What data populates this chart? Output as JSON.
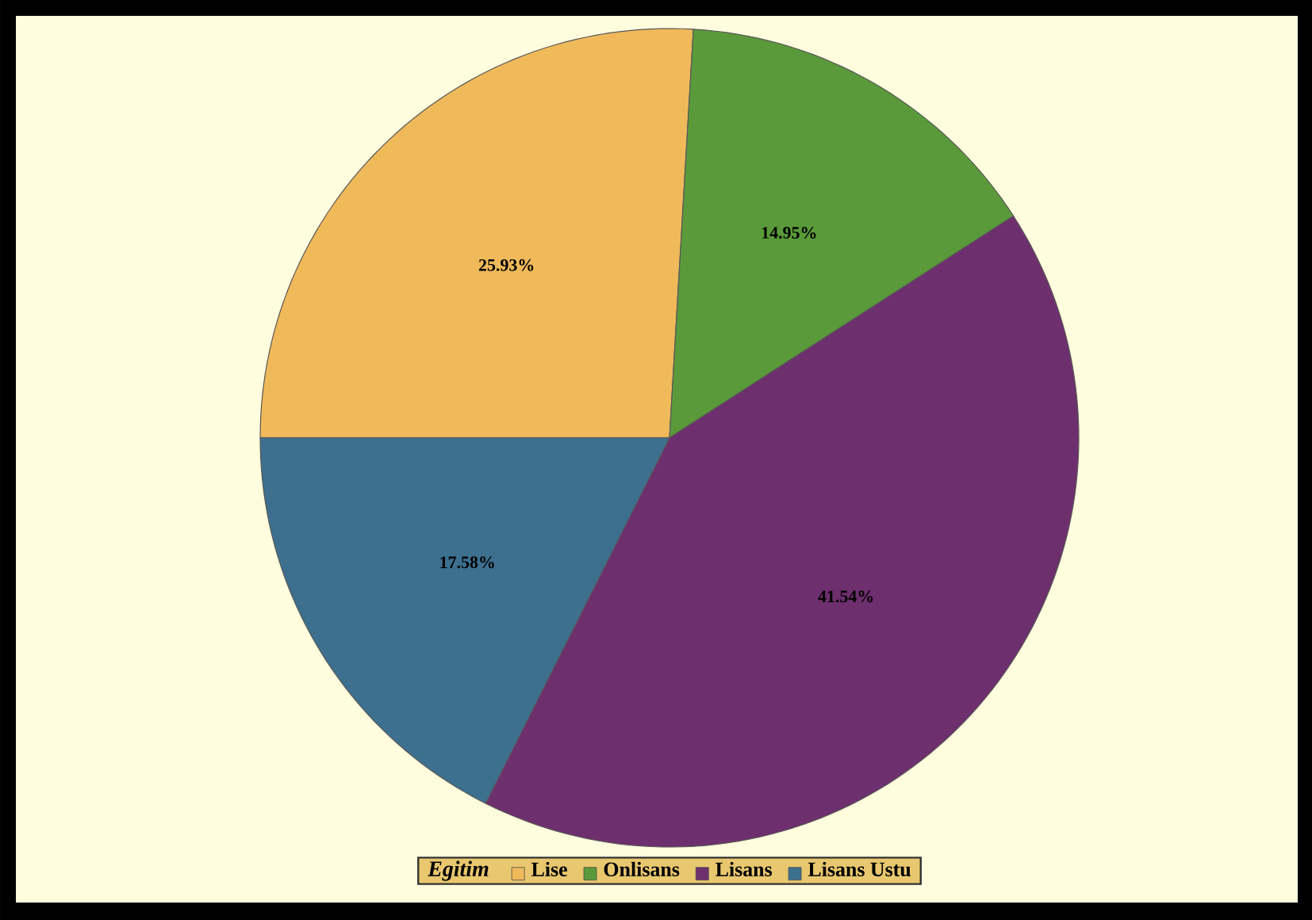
{
  "chart_data": {
    "type": "pie",
    "legend_title": "Egitim",
    "legend": "bottom",
    "categories": [
      "Lise",
      "Onlisans",
      "Lisans",
      "Lisans Ustu"
    ],
    "values": [
      25.93,
      14.95,
      41.54,
      17.58
    ],
    "colors": [
      "#f0b95a",
      "#5a9a3a",
      "#6e2f6e",
      "#3d6f8f"
    ],
    "value_labels": [
      "25.93%",
      "14.95%",
      "41.54%",
      "17.58%"
    ]
  }
}
